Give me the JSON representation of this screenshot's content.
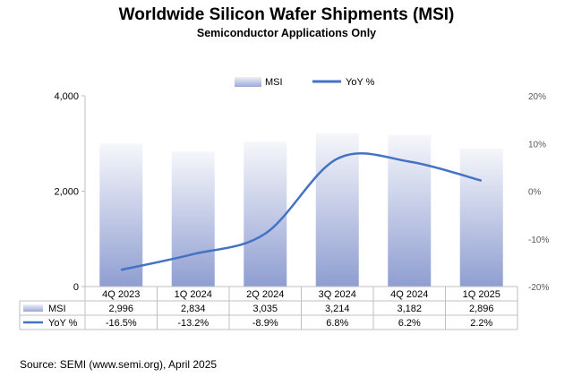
{
  "chart_data": {
    "type": "bar",
    "title": "Worldwide Silicon Wafer Shipments (MSI)",
    "subtitle": "Semiconductor Applications Only",
    "categories": [
      "4Q 2023",
      "1Q 2024",
      "2Q 2024",
      "3Q 2024",
      "4Q 2024",
      "1Q 2025"
    ],
    "series": [
      {
        "name": "MSI",
        "type": "bar",
        "axis": "left",
        "values": [
          2996,
          2834,
          3035,
          3214,
          3182,
          2896
        ],
        "labels": [
          "2,996",
          "2,834",
          "3,035",
          "3,214",
          "3,182",
          "2,896"
        ],
        "color": "#8f9ed1"
      },
      {
        "name": "YoY %",
        "type": "line",
        "axis": "right",
        "values": [
          -16.5,
          -13.2,
          -8.9,
          6.8,
          6.2,
          2.2
        ],
        "labels": [
          "-16.5%",
          "-13.2%",
          "-8.9%",
          "6.8%",
          "6.2%",
          "2.2%"
        ],
        "color": "#4472c4"
      }
    ],
    "y_left": {
      "range": [
        0,
        4000
      ],
      "ticks": [
        "0",
        "2,000",
        "4,000"
      ]
    },
    "y_right": {
      "range": [
        -20,
        20
      ],
      "ticks": [
        "-20%",
        "-10%",
        "0%",
        "10%",
        "20%"
      ]
    },
    "grid": false,
    "legend": "top-center",
    "data_table": true
  },
  "footer": {
    "source": "Source: SEMI (www.semi.org), April 2025"
  }
}
